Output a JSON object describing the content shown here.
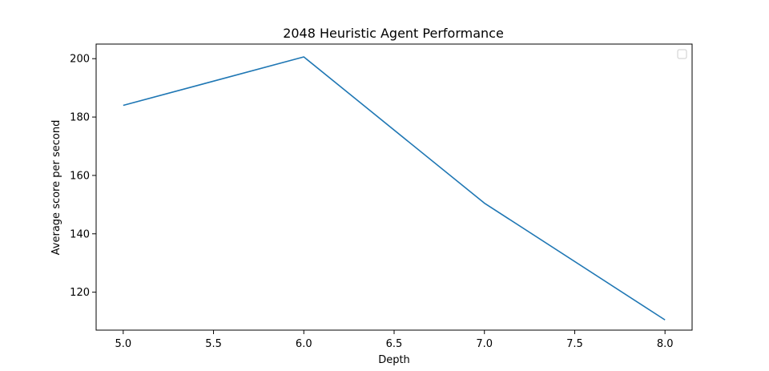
{
  "chart_data": {
    "type": "line",
    "title": "2048 Heuristic Agent Performance",
    "xlabel": "Depth",
    "ylabel": "Average score per second",
    "x": [
      5.0,
      6.0,
      7.0,
      8.0
    ],
    "series": [
      {
        "values": [
          184.0,
          200.6,
          150.5,
          110.5
        ],
        "color": "#1f77b4"
      }
    ],
    "xlim": [
      4.85,
      8.15
    ],
    "ylim": [
      107.0,
      205.0
    ],
    "xticks": [
      5.0,
      5.5,
      6.0,
      6.5,
      7.0,
      7.5,
      8.0
    ],
    "xtick_labels": [
      "5.0",
      "5.5",
      "6.0",
      "6.5",
      "7.0",
      "7.5",
      "8.0"
    ],
    "yticks": [
      120,
      140,
      160,
      180,
      200
    ],
    "ytick_labels": [
      "120",
      "140",
      "160",
      "180",
      "200"
    ],
    "grid": false,
    "legend": {
      "placement": "top-right",
      "entries": []
    }
  }
}
